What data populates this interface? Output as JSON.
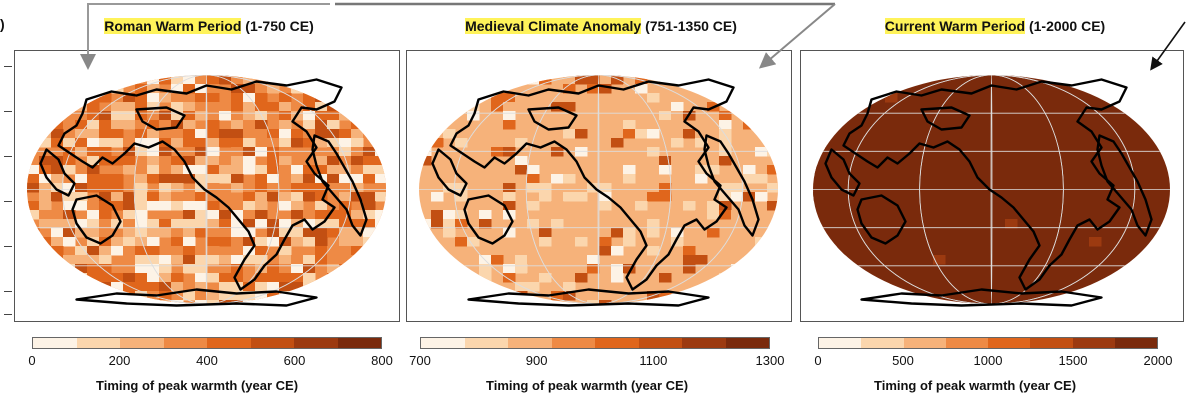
{
  "panel_label": ")",
  "panels": [
    {
      "title_highlight": "Roman Warm Period",
      "title_rest": " (1-750 CE)",
      "colorbar_ticks": [
        "0",
        "200",
        "400",
        "600",
        "800"
      ],
      "colorbar_label": "Timing of peak warmth (year CE)"
    },
    {
      "title_highlight": "Medieval Climate Anomaly",
      "title_rest": " (751-1350 CE)",
      "colorbar_ticks": [
        "700",
        "900",
        "1100",
        "1300"
      ],
      "colorbar_label": "Timing of peak warmth (year CE)"
    },
    {
      "title_highlight": "Current Warm Period",
      "title_rest": " (1-2000 CE)",
      "colorbar_ticks": [
        "0",
        "500",
        "1000",
        "1500",
        "2000"
      ],
      "colorbar_label": "Timing of peak warmth (year CE)"
    }
  ],
  "colors": {
    "scale": [
      "#fdf3e6",
      "#fbd6ad",
      "#f6b27a",
      "#ee8a45",
      "#e0661c",
      "#c24f12",
      "#9c3a10",
      "#7a2a0c"
    ],
    "highlight": "#fff35a",
    "coast": "#000000"
  }
}
